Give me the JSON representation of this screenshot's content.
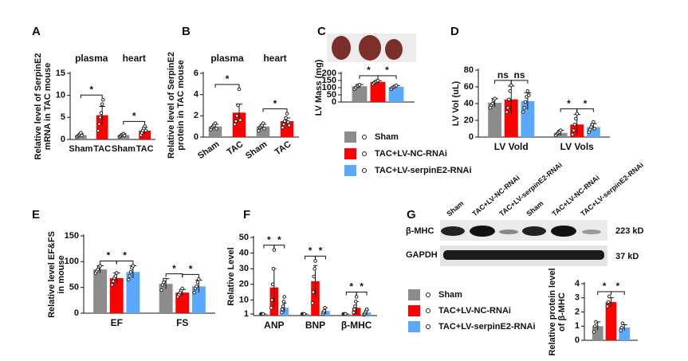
{
  "chart_data": [
    {
      "type": "bar",
      "panel": "A",
      "ylabel": [
        "Relative level of SerpinE2",
        "mRNA in TAC mouse"
      ],
      "groups": [
        "plasma",
        "heart"
      ],
      "categories": [
        "Sham",
        "TAC",
        "Sham",
        "TAC"
      ],
      "values": [
        1,
        5.5,
        1,
        2
      ],
      "errors": [
        0.3,
        2,
        0.3,
        0.7
      ],
      "points": [
        [
          0.5,
          0.8,
          1,
          1.2,
          1.5,
          0.9
        ],
        [
          2,
          3.5,
          5,
          6,
          8,
          9
        ],
        [
          0.6,
          0.8,
          1,
          1.1,
          1.3,
          0.9
        ],
        [
          1,
          1.5,
          2,
          2.5,
          3,
          2
        ]
      ],
      "colors": [
        "#8c8c8c",
        "#ff0000",
        "#8c8c8c",
        "#ff0000"
      ],
      "ylim": [
        0,
        15
      ],
      "yticks": [
        0,
        5,
        10,
        15
      ],
      "annotations": [
        "*",
        "*"
      ]
    },
    {
      "type": "bar",
      "panel": "B",
      "ylabel": [
        "Relative level of SerpinE2",
        "protein in TAC mouse"
      ],
      "groups": [
        "plasma",
        "heart"
      ],
      "categories": [
        "Sham",
        "TAC",
        "Sham",
        "TAC"
      ],
      "values": [
        1,
        2.3,
        1,
        1.5
      ],
      "errors": [
        0.2,
        0.8,
        0.2,
        0.3
      ],
      "points": [
        [
          0.7,
          0.9,
          1,
          1.1,
          1.3,
          0.8
        ],
        [
          1.2,
          1.5,
          2,
          3,
          4.5,
          1.6
        ],
        [
          0.6,
          0.9,
          1,
          1.1,
          1.3,
          0.8
        ],
        [
          0.9,
          1.2,
          1.5,
          1.8,
          2.2,
          1.4,
          1.1
        ]
      ],
      "colors": [
        "#8c8c8c",
        "#ff0000",
        "#8c8c8c",
        "#ff0000"
      ],
      "ylim": [
        0,
        6
      ],
      "yticks": [
        0,
        2,
        4,
        6
      ],
      "annotations": [
        "*",
        "*"
      ]
    },
    {
      "type": "bar",
      "panel": "C",
      "ylabel": [
        "LV Mass (mg)"
      ],
      "categories": [
        null
      ],
      "series": [
        {
          "name": "Sham",
          "color": "#8c8c8c",
          "values": [
            110
          ],
          "errors": [
            12
          ],
          "points": [
            [
              90,
              100,
              110,
              115,
              120
            ]
          ]
        },
        {
          "name": "TAC+LV-NC-RNAi",
          "color": "#ff0000",
          "values": [
            140
          ],
          "errors": [
            8
          ],
          "points": [
            [
              125,
              135,
              140,
              145,
              150
            ]
          ]
        },
        {
          "name": "TAC+LV-serpinE2-RNAi",
          "color": "#5aa9ff",
          "values": [
            105
          ],
          "errors": [
            8
          ],
          "points": [
            [
              90,
              100,
              105,
              110,
              115
            ]
          ]
        }
      ],
      "ylim": [
        0,
        200
      ],
      "yticks": [
        0,
        50,
        100,
        150,
        200
      ],
      "annotations": [
        "*",
        "*"
      ],
      "legend": true
    },
    {
      "type": "bar",
      "panel": "D",
      "ylabel": [
        "LV Vol (uL)"
      ],
      "categories": [
        "LV Vold",
        "LV Vols"
      ],
      "series": [
        {
          "name": "Sham",
          "color": "#8c8c8c",
          "values": [
            41,
            5
          ],
          "errors": [
            5,
            3
          ],
          "points": [
            [
              35,
              38,
              40,
              44,
              46
            ],
            [
              2,
              4,
              5,
              6,
              8
            ]
          ]
        },
        {
          "name": "TAC+LV-NC-RNAi",
          "color": "#ff0000",
          "values": [
            45,
            15
          ],
          "errors": [
            16,
            12
          ],
          "points": [
            [
              30,
              35,
              45,
              55,
              62
            ],
            [
              3,
              8,
              15,
              22,
              28
            ]
          ]
        },
        {
          "name": "TAC+LV-serpinE2-RNAi",
          "color": "#5aa9ff",
          "values": [
            43,
            12
          ],
          "errors": [
            10,
            4
          ],
          "points": [
            [
              30,
              35,
              42,
              48,
              55,
              50
            ],
            [
              6,
              9,
              12,
              15,
              18,
              10
            ]
          ]
        }
      ],
      "ylim": [
        0,
        80
      ],
      "yticks": [
        0,
        20,
        40,
        60,
        80
      ],
      "annotations": [
        "ns",
        "ns",
        "*",
        "*"
      ]
    },
    {
      "type": "bar",
      "panel": "E",
      "ylabel": [
        "Relative level EF&FS",
        "in  mouse"
      ],
      "categories": [
        "EF",
        "FS"
      ],
      "series": [
        {
          "name": "Sham",
          "color": "#8c8c8c",
          "values": [
            85,
            57
          ],
          "errors": [
            7,
            10
          ],
          "points": [
            [
              78,
              82,
              85,
              90,
              92
            ],
            [
              45,
              55,
              60,
              65
            ]
          ]
        },
        {
          "name": "TAC+LV-NC-RNAi",
          "color": "#ff0000",
          "values": [
            68,
            40
          ],
          "errors": [
            10,
            6
          ],
          "points": [
            [
              55,
              62,
              68,
              72,
              78
            ],
            [
              32,
              36,
              40,
              44,
              48
            ]
          ]
        },
        {
          "name": "TAC+LV-serpinE2-RNAi",
          "color": "#5aa9ff",
          "values": [
            80,
            52
          ],
          "errors": [
            12,
            12
          ],
          "points": [
            [
              65,
              72,
              80,
              88,
              92
            ],
            [
              40,
              48,
              52,
              60,
              66
            ]
          ]
        }
      ],
      "ylim": [
        0,
        150
      ],
      "yticks": [
        0,
        50,
        100,
        150
      ],
      "annotations": [
        "*",
        "*",
        "*",
        "*"
      ]
    },
    {
      "type": "bar",
      "panel": "F",
      "ylabel": [
        "Relative Level"
      ],
      "categories": [
        "ANP",
        "BNP",
        "β-MHC"
      ],
      "series": [
        {
          "name": "Sham",
          "color": "#8c8c8c",
          "values": [
            1,
            1,
            1
          ],
          "errors": [
            0.1,
            0.1,
            0.1
          ],
          "points": [
            [
              1,
              1,
              1,
              1
            ],
            [
              1,
              1,
              1,
              1
            ],
            [
              1,
              1,
              1,
              1
            ]
          ]
        },
        {
          "name": "TAC+LV-NC-RNAi",
          "color": "#ff0000",
          "values": [
            18,
            22,
            5
          ],
          "errors": [
            12,
            10,
            4
          ],
          "points": [
            [
              5,
              10,
              20,
              30,
              42
            ],
            [
              8,
              15,
              25,
              30,
              35
            ],
            [
              2,
              4,
              6,
              9,
              12
            ]
          ]
        },
        {
          "name": "TAC+LV-serpinE2-RNAi",
          "color": "#5aa9ff",
          "values": [
            5,
            3,
            2
          ],
          "errors": [
            3,
            2,
            1.5
          ],
          "points": [
            [
              2,
              4,
              6,
              9,
              12
            ],
            [
              1,
              2,
              3,
              5
            ],
            [
              0.5,
              1,
              2,
              3,
              4
            ]
          ]
        }
      ],
      "ylim": [
        0,
        50
      ],
      "yticks": [
        1,
        10,
        20,
        30,
        40,
        50
      ],
      "annotations": [
        "*",
        "*",
        "*",
        "*",
        "*",
        "*"
      ]
    },
    {
      "type": "bar",
      "panel": "G",
      "ylabel": [
        "Relative protein level",
        "of β-MHC"
      ],
      "categories": [
        null
      ],
      "series": [
        {
          "name": "Sham",
          "color": "#8c8c8c",
          "values": [
            1
          ],
          "errors": [
            0.3
          ],
          "points": [
            [
              0.6,
              1,
              1.3
            ]
          ]
        },
        {
          "name": "TAC+LV-NC-RNAi",
          "color": "#ff0000",
          "values": [
            2.7
          ],
          "errors": [
            0.3
          ],
          "points": [
            [
              2.4,
              2.7,
              3.1
            ]
          ]
        },
        {
          "name": "TAC+LV-serpinE2-RNAi",
          "color": "#5aa9ff",
          "values": [
            0.9
          ],
          "errors": [
            0.2
          ],
          "points": [
            [
              0.7,
              0.9,
              1.2
            ]
          ]
        }
      ],
      "ylim": [
        0,
        4
      ],
      "yticks": [
        0,
        1,
        2,
        3,
        4
      ],
      "annotations": [
        "*",
        "*"
      ],
      "legend": true
    }
  ],
  "blot": {
    "lanes": [
      "Sham",
      "TAC+LV-NC-RNAi",
      "TAC+LV-serpinE2-RNAi",
      "Sham",
      "TAC+LV-NC-RNAi",
      "TAC+LV-serpinE2-RNAi"
    ],
    "rows": [
      "β-MHC",
      "GAPDH"
    ],
    "sizes": [
      "223 kD",
      "37 kD"
    ]
  }
}
